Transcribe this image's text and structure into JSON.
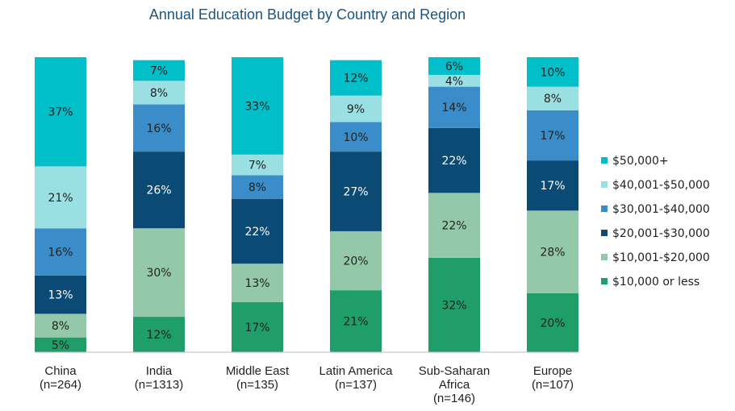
{
  "chart_data": {
    "type": "stacked_bar",
    "title": "Annual Education Budget by Country and Region",
    "categories": [
      [
        "China",
        "(n=264)"
      ],
      [
        "India",
        "(n=1313)"
      ],
      [
        "Middle East",
        "(n=135)"
      ],
      [
        "Latin America",
        "(n=137)"
      ],
      [
        "Sub-Saharan",
        "Africa",
        "(n=146)"
      ],
      [
        "Europe",
        "(n=107)"
      ]
    ],
    "ylim": [
      0,
      100
    ],
    "legend": "right",
    "series": [
      {
        "name": "$10,000 or less",
        "color": "#1f9e6a",
        "values": [
          5,
          12,
          17,
          21,
          32,
          20
        ],
        "value_labels": [
          "5%",
          "12%",
          "17%",
          "21%",
          "32%",
          "20%"
        ]
      },
      {
        "name": "$10,001-$20,000",
        "color": "#93c9a8",
        "values": [
          8,
          30,
          13,
          20,
          22,
          28
        ],
        "value_labels": [
          "8%",
          "30%",
          "13%",
          "20%",
          "22%",
          "28%"
        ]
      },
      {
        "name": "$20,001-$30,000",
        "color": "#0b4a74",
        "values": [
          13,
          26,
          22,
          27,
          22,
          17
        ],
        "value_labels": [
          "13%",
          "26%",
          "22%",
          "27%",
          "22%",
          "17%"
        ]
      },
      {
        "name": "$30,001-$40,000",
        "color": "#3a8dc8",
        "values": [
          16,
          16,
          8,
          10,
          14,
          17
        ],
        "value_labels": [
          "16%",
          "16%",
          "8%",
          "10%",
          "14%",
          "17%"
        ]
      },
      {
        "name": "$40,001-$50,000",
        "color": "#9adfe1",
        "values": [
          21,
          8,
          7,
          9,
          4,
          8
        ],
        "value_labels": [
          "21%",
          "8%",
          "7%",
          "9%",
          "4%",
          "8%"
        ]
      },
      {
        "name": "$50,000+",
        "color": "#00bfc8",
        "values": [
          37,
          7,
          33,
          12,
          6,
          10
        ],
        "value_labels": [
          "37%",
          "7%",
          "33%",
          "12%",
          "6%",
          "10%"
        ]
      }
    ]
  }
}
